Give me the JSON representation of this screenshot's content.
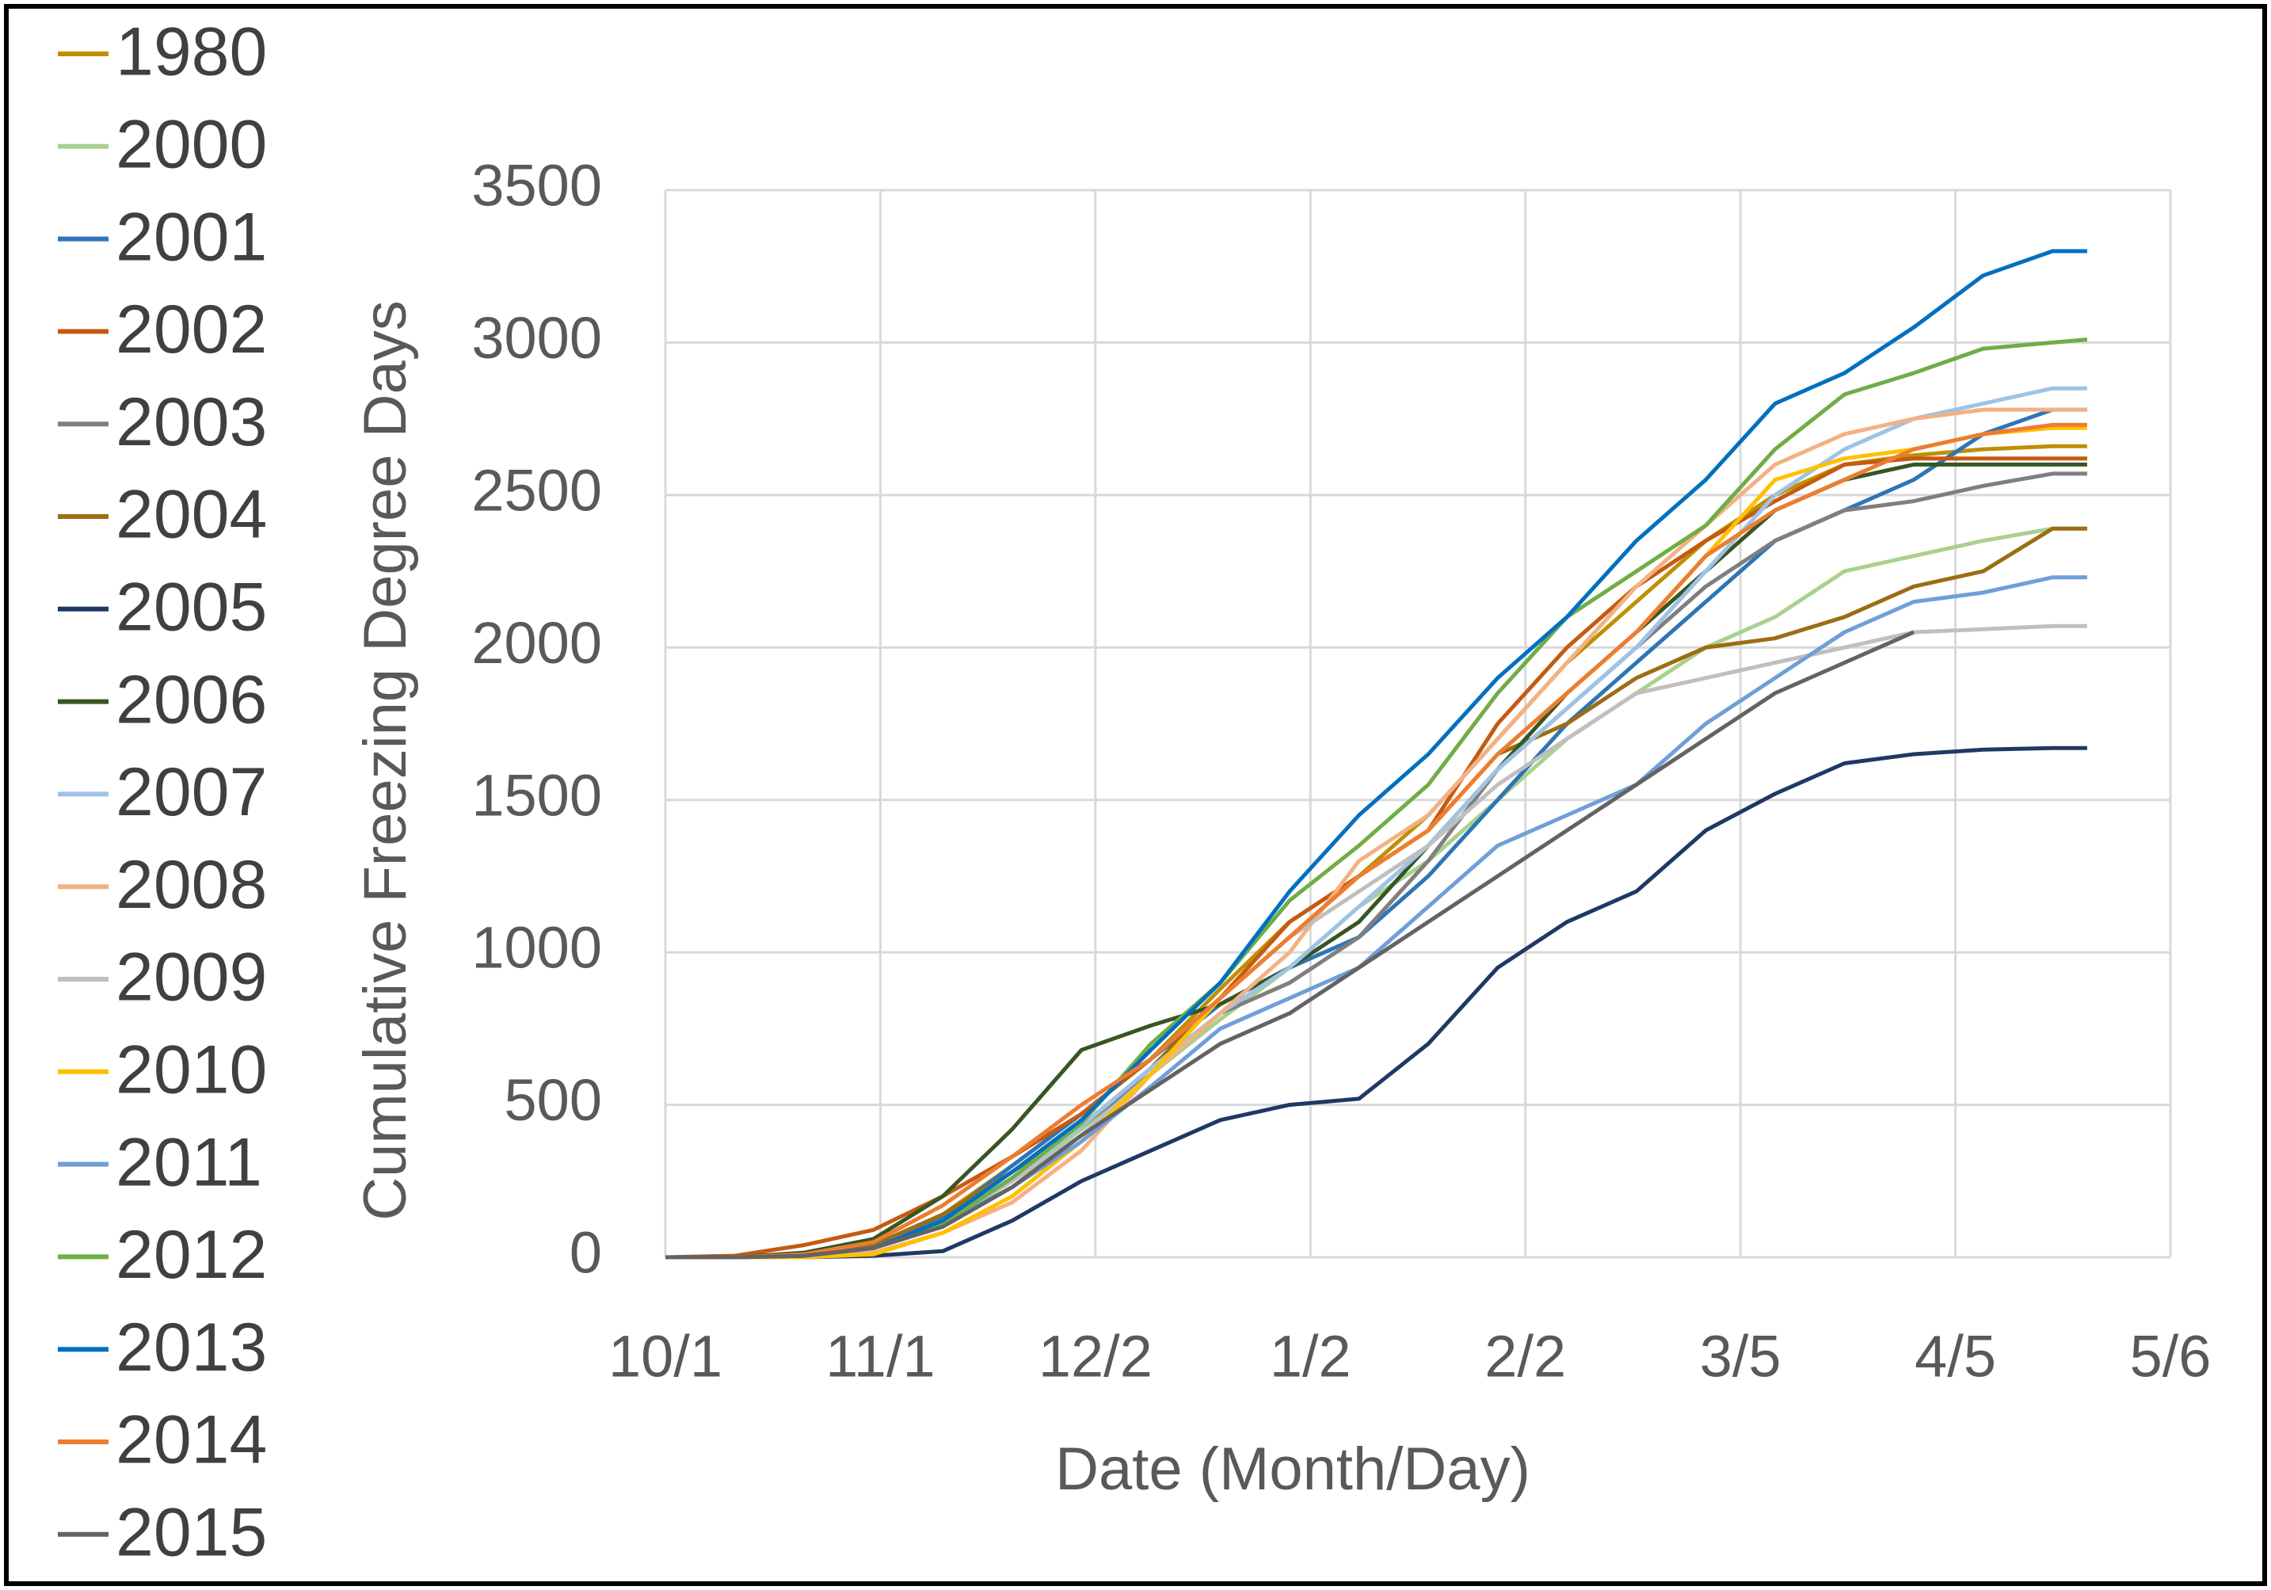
{
  "chart_data": {
    "type": "line",
    "x_label": "Date (Month/Day)",
    "y_label": "Cumulative Freezing Degree Days",
    "x": [
      0,
      10,
      20,
      30,
      40,
      50,
      60,
      70,
      80,
      90,
      100,
      110,
      120,
      130,
      140,
      150,
      160,
      170,
      180,
      190,
      200,
      205
    ],
    "xlim": [
      0,
      217
    ],
    "xticks": [
      {
        "value": 0,
        "label": "10/1"
      },
      {
        "value": 31,
        "label": "11/1"
      },
      {
        "value": 62,
        "label": "12/2"
      },
      {
        "value": 93,
        "label": "1/2"
      },
      {
        "value": 124,
        "label": "2/2"
      },
      {
        "value": 155,
        "label": "3/5"
      },
      {
        "value": 186,
        "label": "4/5"
      },
      {
        "value": 217,
        "label": "5/6"
      }
    ],
    "ylim": [
      0,
      3500
    ],
    "yticks": [
      0,
      500,
      1000,
      1500,
      2000,
      2500,
      3000,
      3500
    ],
    "grid": true,
    "legend": "left",
    "series": [
      {
        "name": "1980",
        "color": "#bf9000",
        "values": [
          0,
          0,
          10,
          40,
          140,
          300,
          470,
          650,
          880,
          1100,
          1250,
          1450,
          1700,
          1950,
          2150,
          2350,
          2500,
          2600,
          2630,
          2650,
          2660,
          2660
        ]
      },
      {
        "name": "2000",
        "color": "#a9d18e",
        "values": [
          0,
          0,
          5,
          30,
          110,
          250,
          420,
          600,
          780,
          950,
          1150,
          1300,
          1500,
          1700,
          1850,
          2000,
          2100,
          2250,
          2300,
          2350,
          2390,
          2390
        ]
      },
      {
        "name": "2001",
        "color": "#2e75b6",
        "values": [
          0,
          0,
          5,
          40,
          130,
          300,
          470,
          650,
          830,
          950,
          1050,
          1250,
          1500,
          1750,
          1950,
          2150,
          2350,
          2450,
          2550,
          2700,
          2780,
          2780
        ]
      },
      {
        "name": "2002",
        "color": "#c55a11",
        "values": [
          0,
          5,
          40,
          90,
          200,
          330,
          470,
          650,
          850,
          1100,
          1250,
          1400,
          1750,
          2000,
          2200,
          2350,
          2480,
          2600,
          2620,
          2620,
          2620,
          2620
        ]
      },
      {
        "name": "2003",
        "color": "#7f7f7f",
        "values": [
          0,
          0,
          10,
          40,
          140,
          280,
          430,
          600,
          800,
          900,
          1050,
          1300,
          1600,
          1800,
          2000,
          2200,
          2350,
          2450,
          2480,
          2530,
          2570,
          2570
        ]
      },
      {
        "name": "2004",
        "color": "#9c6d12",
        "values": [
          0,
          0,
          10,
          40,
          140,
          280,
          430,
          620,
          850,
          1050,
          1250,
          1400,
          1650,
          1750,
          1900,
          2000,
          2030,
          2100,
          2200,
          2250,
          2390,
          2390
        ]
      },
      {
        "name": "2005",
        "color": "#203864",
        "values": [
          0,
          0,
          0,
          5,
          20,
          120,
          250,
          350,
          450,
          500,
          520,
          700,
          950,
          1100,
          1200,
          1400,
          1520,
          1620,
          1650,
          1665,
          1670,
          1670
        ]
      },
      {
        "name": "2006",
        "color": "#375623",
        "values": [
          0,
          0,
          15,
          60,
          200,
          420,
          680,
          760,
          830,
          950,
          1100,
          1350,
          1600,
          1850,
          2050,
          2250,
          2450,
          2550,
          2600,
          2600,
          2600,
          2600
        ]
      },
      {
        "name": "2007",
        "color": "#9dc3e6",
        "values": [
          0,
          0,
          5,
          30,
          120,
          260,
          430,
          620,
          800,
          950,
          1150,
          1350,
          1600,
          1800,
          2000,
          2250,
          2500,
          2650,
          2750,
          2800,
          2850,
          2850
        ]
      },
      {
        "name": "2008",
        "color": "#f4b183",
        "values": [
          0,
          0,
          0,
          15,
          80,
          180,
          350,
          600,
          800,
          1000,
          1300,
          1450,
          1700,
          1950,
          2200,
          2400,
          2600,
          2700,
          2750,
          2780,
          2780,
          2780
        ]
      },
      {
        "name": "2009",
        "color": "#bfbfbf",
        "values": [
          0,
          0,
          5,
          30,
          120,
          250,
          400,
          600,
          850,
          1050,
          1200,
          1350,
          1550,
          1700,
          1850,
          1900,
          1950,
          2000,
          2050,
          2060,
          2070,
          2070
        ]
      },
      {
        "name": "2010",
        "color": "#ffc000",
        "values": [
          0,
          0,
          0,
          10,
          80,
          200,
          380,
          600,
          850,
          1050,
          1250,
          1400,
          1650,
          1850,
          2050,
          2300,
          2550,
          2620,
          2650,
          2700,
          2720,
          2720
        ]
      },
      {
        "name": "2011",
        "color": "#6f9fd8",
        "values": [
          0,
          0,
          5,
          30,
          110,
          230,
          380,
          560,
          750,
          850,
          950,
          1150,
          1350,
          1450,
          1550,
          1750,
          1900,
          2050,
          2150,
          2180,
          2230,
          2230
        ]
      },
      {
        "name": "2012",
        "color": "#70ad47",
        "values": [
          0,
          0,
          5,
          30,
          110,
          260,
          440,
          700,
          900,
          1170,
          1350,
          1550,
          1850,
          2100,
          2250,
          2400,
          2650,
          2830,
          2900,
          2980,
          3000,
          3010
        ]
      },
      {
        "name": "2013",
        "color": "#0070c0",
        "values": [
          0,
          0,
          5,
          30,
          120,
          280,
          450,
          680,
          900,
          1200,
          1450,
          1650,
          1900,
          2100,
          2350,
          2550,
          2800,
          2900,
          3050,
          3220,
          3300,
          3300
        ]
      },
      {
        "name": "2014",
        "color": "#ed7d31",
        "values": [
          0,
          0,
          10,
          50,
          170,
          330,
          500,
          650,
          850,
          1050,
          1250,
          1400,
          1650,
          1850,
          2050,
          2300,
          2450,
          2550,
          2650,
          2700,
          2730,
          2730
        ]
      },
      {
        "name": "2015",
        "color": "#636363",
        "values": [
          0,
          0,
          5,
          30,
          100,
          230,
          400,
          550,
          700,
          800,
          950,
          1100,
          1250,
          1400,
          1550,
          1700,
          1850,
          1950,
          2050,
          null,
          null,
          null
        ]
      }
    ]
  }
}
